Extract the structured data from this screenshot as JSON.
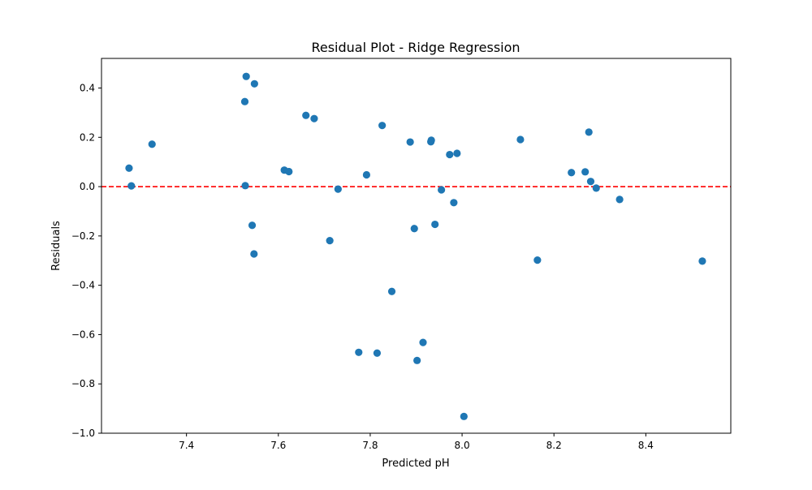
{
  "chart_data": {
    "type": "scatter",
    "title": "Residual Plot - Ridge Regression",
    "xlabel": "Predicted pH",
    "ylabel": "Residuals",
    "xlim": [
      7.215,
      8.585
    ],
    "ylim": [
      -1.0,
      0.52
    ],
    "xticks": [
      7.4,
      7.6,
      7.8,
      8.0,
      8.2,
      8.4
    ],
    "xtick_labels": [
      "7.4",
      "7.6",
      "7.8",
      "8.0",
      "8.2",
      "8.4"
    ],
    "yticks": [
      -1.0,
      -0.8,
      -0.6,
      -0.4,
      -0.2,
      0.0,
      0.2,
      0.4
    ],
    "ytick_labels": [
      "−1.0",
      "−0.8",
      "−0.6",
      "−0.4",
      "−0.2",
      "0.0",
      "0.2",
      "0.4"
    ],
    "grid": false,
    "point_color": "#1f77b4",
    "reference_line": {
      "y": 0.0,
      "color": "#ff0000",
      "style": "dashed"
    },
    "points": [
      {
        "x": 7.275,
        "y": 0.075
      },
      {
        "x": 7.28,
        "y": 0.003
      },
      {
        "x": 7.325,
        "y": 0.172
      },
      {
        "x": 7.527,
        "y": 0.345
      },
      {
        "x": 7.528,
        "y": 0.004
      },
      {
        "x": 7.53,
        "y": 0.447
      },
      {
        "x": 7.543,
        "y": -0.157
      },
      {
        "x": 7.547,
        "y": -0.273
      },
      {
        "x": 7.548,
        "y": 0.417
      },
      {
        "x": 7.613,
        "y": 0.067
      },
      {
        "x": 7.623,
        "y": 0.061
      },
      {
        "x": 7.66,
        "y": 0.289
      },
      {
        "x": 7.678,
        "y": 0.276
      },
      {
        "x": 7.712,
        "y": -0.219
      },
      {
        "x": 7.73,
        "y": -0.01
      },
      {
        "x": 7.775,
        "y": -0.672
      },
      {
        "x": 7.792,
        "y": 0.048
      },
      {
        "x": 7.815,
        "y": -0.675
      },
      {
        "x": 7.826,
        "y": 0.248
      },
      {
        "x": 7.847,
        "y": -0.425
      },
      {
        "x": 7.887,
        "y": 0.181
      },
      {
        "x": 7.896,
        "y": -0.17
      },
      {
        "x": 7.902,
        "y": -0.705
      },
      {
        "x": 7.915,
        "y": -0.632
      },
      {
        "x": 7.932,
        "y": 0.182
      },
      {
        "x": 7.933,
        "y": 0.188
      },
      {
        "x": 7.941,
        "y": -0.153
      },
      {
        "x": 7.955,
        "y": -0.013
      },
      {
        "x": 7.973,
        "y": 0.13
      },
      {
        "x": 7.982,
        "y": -0.065
      },
      {
        "x": 7.989,
        "y": 0.135
      },
      {
        "x": 8.004,
        "y": -0.932
      },
      {
        "x": 8.127,
        "y": 0.191
      },
      {
        "x": 8.164,
        "y": -0.298
      },
      {
        "x": 8.238,
        "y": 0.057
      },
      {
        "x": 8.268,
        "y": 0.06
      },
      {
        "x": 8.276,
        "y": 0.221
      },
      {
        "x": 8.28,
        "y": 0.021
      },
      {
        "x": 8.292,
        "y": -0.006
      },
      {
        "x": 8.343,
        "y": -0.052
      },
      {
        "x": 8.523,
        "y": -0.302
      }
    ]
  }
}
